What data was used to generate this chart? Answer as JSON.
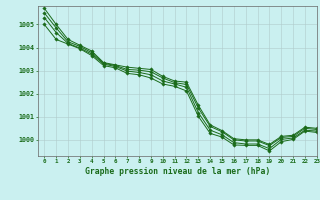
{
  "title": "Graphe pression niveau de la mer (hPa)",
  "bg_color": "#caf0f0",
  "grid_color": "#b0cccc",
  "line_color": "#1a6b1a",
  "xlim": [
    -0.5,
    23
  ],
  "ylim": [
    999.3,
    1005.8
  ],
  "yticks": [
    1000,
    1001,
    1002,
    1003,
    1004,
    1005
  ],
  "xticks": [
    0,
    1,
    2,
    3,
    4,
    5,
    6,
    7,
    8,
    9,
    10,
    11,
    12,
    13,
    14,
    15,
    16,
    17,
    18,
    19,
    20,
    21,
    22,
    23
  ],
  "series": [
    [
      1005.7,
      1005.0,
      1004.35,
      1004.1,
      1003.85,
      1003.35,
      1003.25,
      1003.15,
      1003.1,
      1003.05,
      1002.75,
      1002.55,
      1002.5,
      1001.5,
      1000.65,
      1000.4,
      1000.05,
      1000.0,
      1000.0,
      999.8,
      1000.15,
      1000.2,
      1000.55,
      1000.5
    ],
    [
      1005.5,
      1004.85,
      1004.25,
      1004.05,
      1003.78,
      1003.32,
      1003.22,
      1003.05,
      1003.02,
      1002.95,
      1002.68,
      1002.48,
      1002.4,
      1001.38,
      1000.58,
      1000.35,
      1000.0,
      999.95,
      999.95,
      999.75,
      1000.1,
      1000.15,
      1000.5,
      1000.45
    ],
    [
      1005.3,
      1004.65,
      1004.18,
      1003.98,
      1003.72,
      1003.28,
      1003.18,
      1002.98,
      1002.92,
      1002.82,
      1002.55,
      1002.42,
      1002.28,
      1001.18,
      1000.42,
      1000.22,
      999.88,
      999.82,
      999.82,
      999.62,
      1000.02,
      1000.08,
      1000.42,
      1000.38
    ],
    [
      1005.0,
      1004.35,
      1004.15,
      1003.95,
      1003.65,
      1003.22,
      1003.12,
      1002.88,
      1002.82,
      1002.68,
      1002.42,
      1002.32,
      1002.12,
      1001.02,
      1000.28,
      1000.12,
      999.78,
      999.76,
      999.76,
      999.52,
      999.92,
      1000.02,
      1000.38,
      1000.32
    ]
  ]
}
